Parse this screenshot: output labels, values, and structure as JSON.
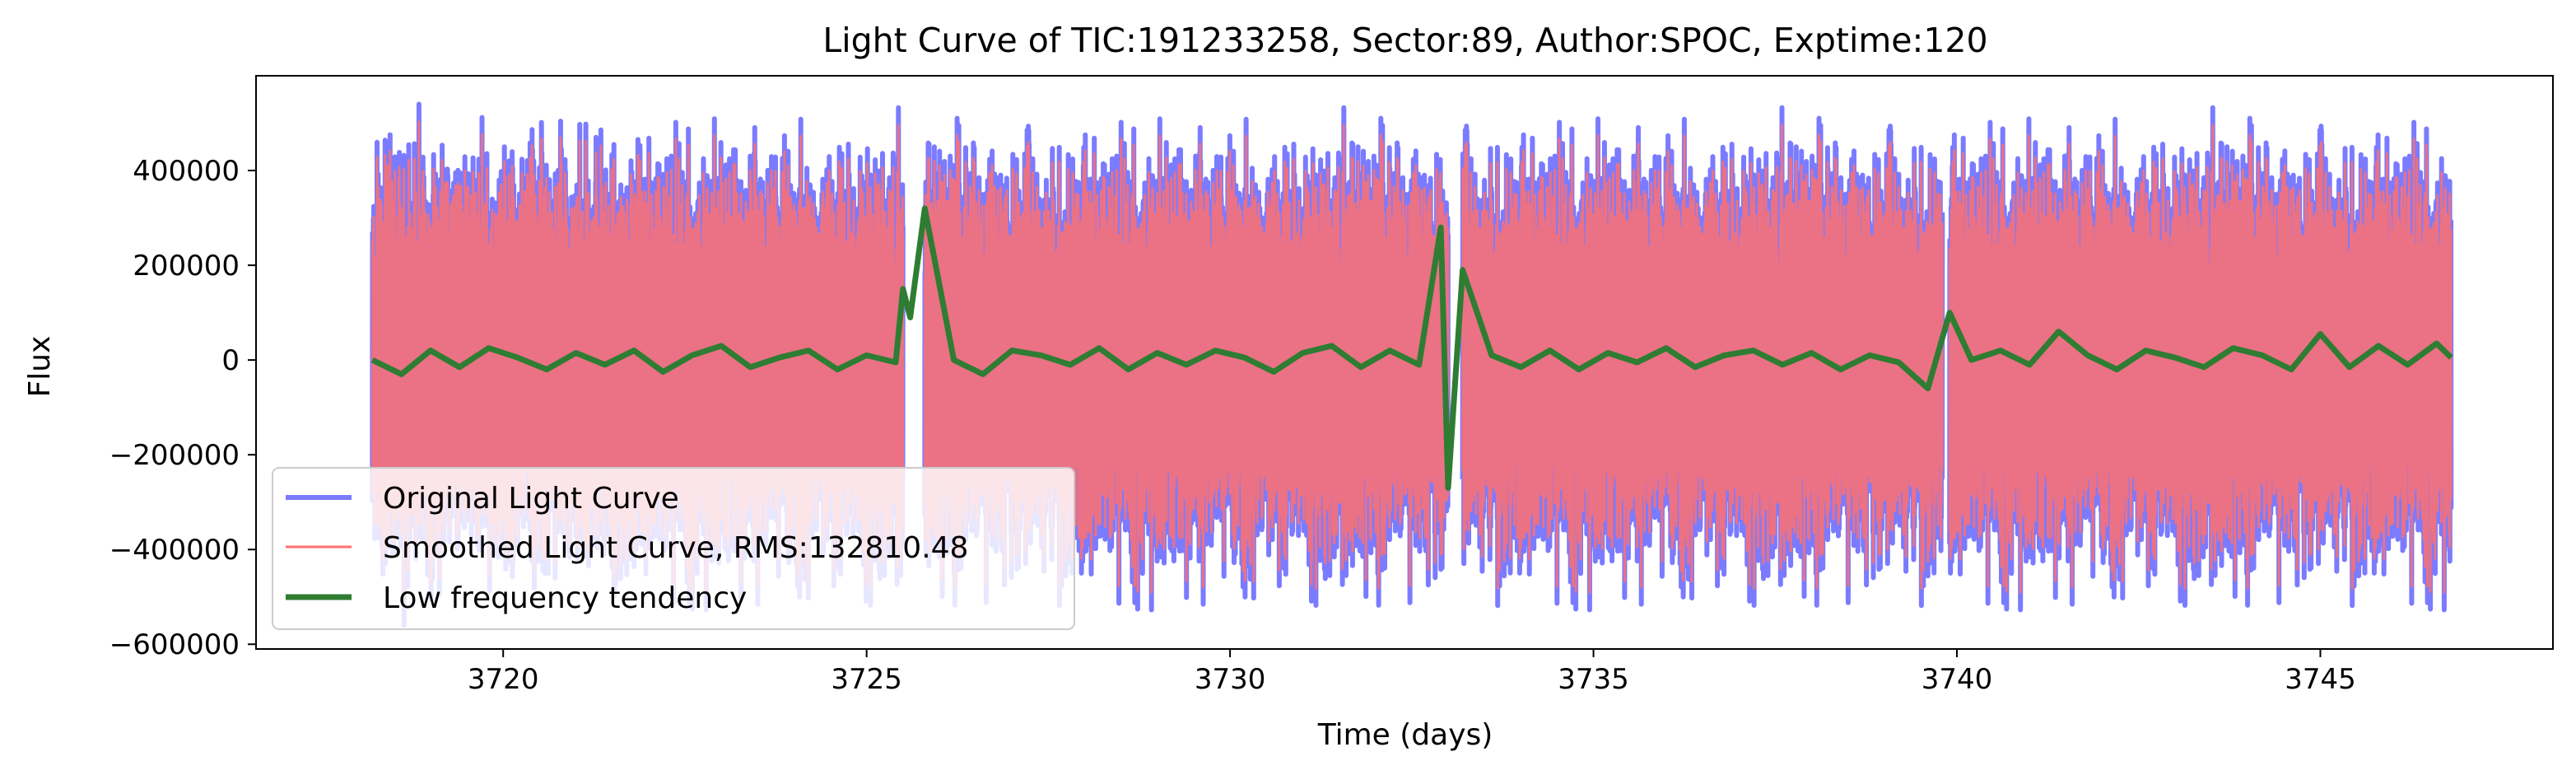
{
  "chart_data": {
    "type": "line",
    "title": "Light Curve of TIC:191233258, Sector:89, Author:SPOC, Exptime:120",
    "xlabel": "Time (days)",
    "ylabel": "Flux",
    "xlim": [
      3716.6,
      3748.2
    ],
    "ylim": [
      -610000,
      600000
    ],
    "xticks": [
      3720,
      3725,
      3730,
      3735,
      3740,
      3745
    ],
    "xtick_labels": [
      "3720",
      "3725",
      "3730",
      "3735",
      "3740",
      "3745"
    ],
    "yticks": [
      -600000,
      -400000,
      -200000,
      0,
      200000,
      400000
    ],
    "ytick_labels": [
      "−600000",
      "−400000",
      "−200000",
      "0",
      "200000",
      "400000"
    ],
    "grid": false,
    "legend_position": "lower-left",
    "segments": [
      [
        3718.2,
        3725.5
      ],
      [
        3725.8,
        3733.0
      ],
      [
        3733.2,
        3739.8
      ],
      [
        3739.9,
        3746.8
      ]
    ],
    "series": [
      {
        "name": "Original Light Curve",
        "color": "#7b7bff",
        "envelope": {
          "typical_amplitude": 290000,
          "peak_max": 540000,
          "trough_min": -560000
        }
      },
      {
        "name": "Smoothed Light Curve, RMS:132810.48",
        "color": "#ff7070",
        "rms": 132810.48
      },
      {
        "name": "Low frequency tendency",
        "color": "#2e7d32",
        "x": [
          3718.2,
          3718.6,
          3719.0,
          3719.4,
          3719.8,
          3720.2,
          3720.6,
          3721.0,
          3721.4,
          3721.8,
          3722.2,
          3722.6,
          3723.0,
          3723.4,
          3723.8,
          3724.2,
          3724.6,
          3725.0,
          3725.4,
          3725.5,
          3725.6,
          3725.8,
          3726.2,
          3726.6,
          3727.0,
          3727.4,
          3727.8,
          3728.2,
          3728.6,
          3729.0,
          3729.4,
          3729.8,
          3730.2,
          3730.6,
          3731.0,
          3731.4,
          3731.8,
          3732.2,
          3732.6,
          3732.9,
          3733.0,
          3733.2,
          3733.6,
          3734.0,
          3734.4,
          3734.8,
          3735.2,
          3735.6,
          3736.0,
          3736.4,
          3736.8,
          3737.2,
          3737.6,
          3738.0,
          3738.4,
          3738.8,
          3739.2,
          3739.6,
          3739.9,
          3740.2,
          3740.6,
          3741.0,
          3741.4,
          3741.8,
          3742.2,
          3742.6,
          3743.0,
          3743.4,
          3743.8,
          3744.2,
          3744.6,
          3745.0,
          3745.4,
          3745.8,
          3746.2,
          3746.6,
          3746.8
        ],
        "y": [
          0,
          -30000,
          20000,
          -15000,
          25000,
          5000,
          -20000,
          15000,
          -10000,
          20000,
          -25000,
          10000,
          30000,
          -15000,
          5000,
          20000,
          -20000,
          10000,
          -5000,
          150000,
          90000,
          320000,
          0,
          -30000,
          20000,
          10000,
          -10000,
          25000,
          -20000,
          15000,
          -10000,
          20000,
          5000,
          -25000,
          15000,
          30000,
          -15000,
          20000,
          -10000,
          280000,
          -270000,
          190000,
          10000,
          -15000,
          20000,
          -20000,
          15000,
          -5000,
          25000,
          -15000,
          10000,
          20000,
          -10000,
          15000,
          -20000,
          10000,
          -5000,
          -60000,
          100000,
          0,
          20000,
          -10000,
          60000,
          10000,
          -20000,
          20000,
          5000,
          -15000,
          25000,
          10000,
          -20000,
          55000,
          -15000,
          30000,
          -10000,
          35000,
          5000
        ]
      }
    ]
  }
}
